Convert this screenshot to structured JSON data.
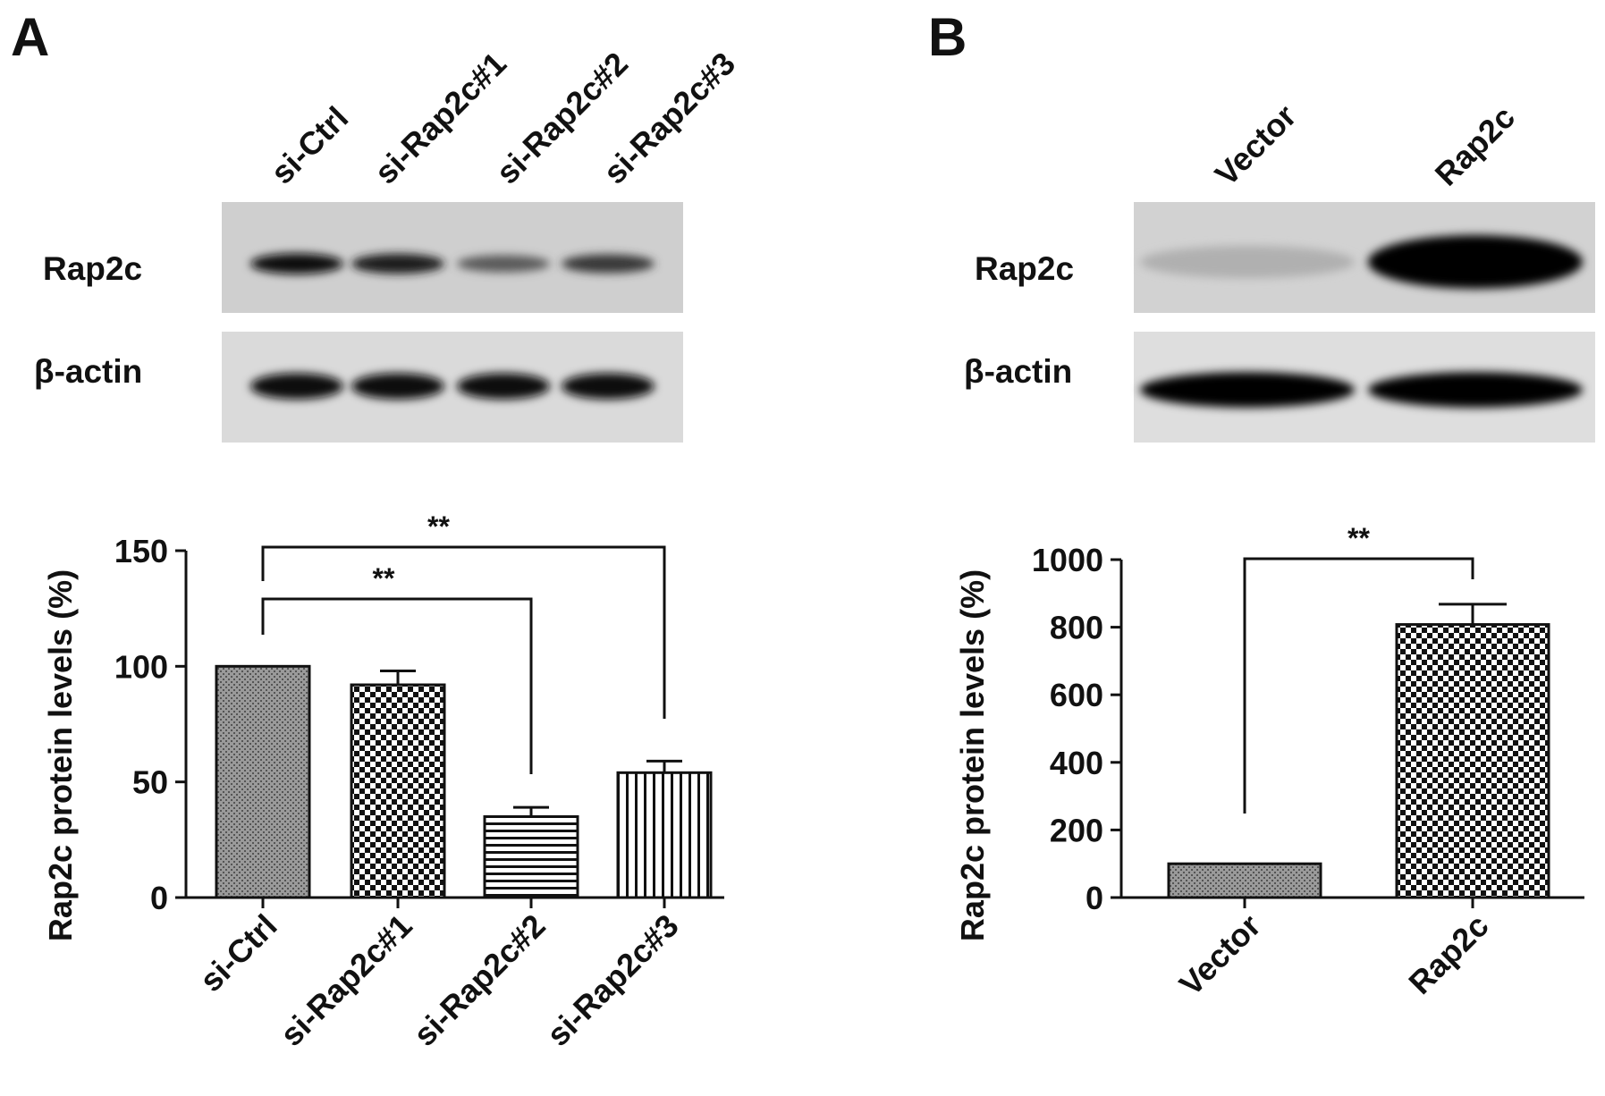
{
  "panels": [
    {
      "letter": "A",
      "blot": {
        "lanes": [
          "si-Ctrl",
          "si-Rap2c#1",
          "si-Rap2c#2",
          "si-Rap2c#3"
        ],
        "rows": [
          {
            "label": "Rap2c",
            "intensity": [
              0.92,
              0.85,
              0.55,
              0.72
            ]
          },
          {
            "label": "β-actin",
            "intensity": [
              0.95,
              0.95,
              0.95,
              0.95
            ]
          }
        ]
      }
    },
    {
      "letter": "B",
      "blot": {
        "lanes": [
          "Vector",
          "Rap2c"
        ],
        "rows": [
          {
            "label": "Rap2c",
            "intensity": [
              0.12,
              1.0
            ]
          },
          {
            "label": "β-actin",
            "intensity": [
              0.98,
              0.98
            ]
          }
        ]
      }
    }
  ],
  "chart_data": [
    {
      "type": "bar",
      "panel": "A",
      "categories": [
        "si-Ctrl",
        "si-Rap2c#1",
        "si-Rap2c#2",
        "si-Rap2c#3"
      ],
      "values": [
        100,
        92,
        35,
        54
      ],
      "errors": [
        0,
        6,
        4,
        5
      ],
      "patterns": [
        "stipple",
        "checker",
        "hlines",
        "vlines"
      ],
      "ylabel": "Rap2c protein levels (%)",
      "ylim": [
        0,
        150
      ],
      "yticks": [
        0,
        50,
        100,
        150
      ],
      "significance": [
        {
          "from": 0,
          "to": 2,
          "label": "**"
        },
        {
          "from": 0,
          "to": 3,
          "label": "**"
        }
      ]
    },
    {
      "type": "bar",
      "panel": "B",
      "categories": [
        "Vector",
        "Rap2c"
      ],
      "values": [
        100,
        808
      ],
      "errors": [
        0,
        60
      ],
      "patterns": [
        "stipple",
        "checker"
      ],
      "ylabel": "Rap2c protein levels (%)",
      "ylim": [
        0,
        1000
      ],
      "yticks": [
        0,
        200,
        400,
        600,
        800,
        1000
      ],
      "significance": [
        {
          "from": 0,
          "to": 1,
          "label": "**"
        }
      ]
    }
  ]
}
